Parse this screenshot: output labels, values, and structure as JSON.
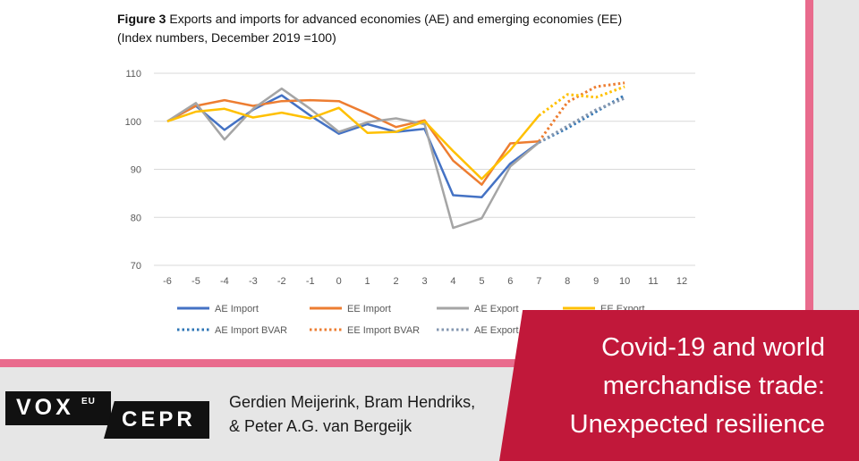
{
  "figure": {
    "label": "Figure 3",
    "title_text": "Exports and imports for advanced economies (AE) and emerging economies (EE)",
    "subtitle": "(Index numbers, December 2019 =100)"
  },
  "chart_data": {
    "type": "line",
    "title": "Exports and imports for advanced economies (AE) and emerging economies (EE)",
    "subtitle": "(Index numbers, December 2019 =100)",
    "xlabel": "",
    "ylabel": "",
    "categories": [
      "-6",
      "-5",
      "-4",
      "-3",
      "-2",
      "-1",
      "0",
      "1",
      "2",
      "3",
      "4",
      "5",
      "6",
      "7",
      "8",
      "9",
      "10",
      "11",
      "12"
    ],
    "xlim": [
      -6,
      12
    ],
    "ylim": [
      70,
      110
    ],
    "yticks": [
      70,
      80,
      90,
      100,
      110
    ],
    "grid": "horizontal",
    "legend_position": "bottom",
    "series": [
      {
        "name": "AE Import",
        "color": "#4472c4",
        "style": "solid",
        "x": [
          -6,
          -5,
          -4,
          -3,
          -2,
          -1,
          0,
          1,
          2,
          3,
          4,
          5,
          6,
          7
        ],
        "values": [
          100,
          103.2,
          98.2,
          102.4,
          105.4,
          101.2,
          97.4,
          99.4,
          97.8,
          98.4,
          84.6,
          84.2,
          91.2,
          95.6
        ]
      },
      {
        "name": "EE Import",
        "color": "#ed7d31",
        "style": "solid",
        "x": [
          -6,
          -5,
          -4,
          -3,
          -2,
          -1,
          0,
          1,
          2,
          3,
          4,
          5,
          6,
          7
        ],
        "values": [
          100,
          103.2,
          104.4,
          103.2,
          104.2,
          104.4,
          104.2,
          101.6,
          98.8,
          100.2,
          91.8,
          86.8,
          95.4,
          95.8
        ]
      },
      {
        "name": "AE Export",
        "color": "#a5a5a5",
        "style": "solid",
        "x": [
          -6,
          -5,
          -4,
          -3,
          -2,
          -1,
          0,
          1,
          2,
          3,
          4,
          5,
          6,
          7
        ],
        "values": [
          100,
          103.8,
          96.2,
          102.6,
          106.8,
          102.6,
          97.8,
          99.8,
          100.6,
          99.4,
          77.8,
          79.8,
          90.6,
          95.6
        ]
      },
      {
        "name": "EE Export",
        "color": "#ffc000",
        "style": "solid",
        "x": [
          -6,
          -5,
          -4,
          -3,
          -2,
          -1,
          0,
          1,
          2,
          3,
          4,
          5,
          6,
          7
        ],
        "values": [
          100,
          102.0,
          102.6,
          100.8,
          101.8,
          100.6,
          102.8,
          97.6,
          97.8,
          100.0,
          93.8,
          88.0,
          94.0,
          101.2
        ]
      },
      {
        "name": "AE Import BVAR",
        "color": "#2e75b6",
        "style": "dotted",
        "x": [
          7,
          8,
          9,
          10
        ],
        "values": [
          95.6,
          98.6,
          102.0,
          105.4
        ]
      },
      {
        "name": "EE Import BVAR",
        "color": "#ed7d31",
        "style": "dotted",
        "x": [
          7,
          8,
          9,
          10
        ],
        "values": [
          95.8,
          104.0,
          107.2,
          108.0
        ]
      },
      {
        "name": "AE Export BVAR",
        "color": "#8497b0",
        "style": "dotted",
        "x": [
          7,
          8,
          9,
          10
        ],
        "values": [
          95.6,
          99.0,
          102.4,
          104.8
        ]
      },
      {
        "name": "EE Export BVAR",
        "color": "#ffc000",
        "style": "dotted",
        "x": [
          7,
          8,
          9,
          10
        ],
        "values": [
          101.2,
          105.6,
          105.0,
          107.2
        ]
      }
    ],
    "legend": [
      {
        "label": "AE Import",
        "series": 0
      },
      {
        "label": "EE Import",
        "series": 1
      },
      {
        "label": "AE Export",
        "series": 2
      },
      {
        "label": "EE Export",
        "series": 3
      },
      {
        "label": "AE Import BVAR",
        "series": 4
      },
      {
        "label": "EE Import BVAR",
        "series": 5
      },
      {
        "label": "AE Export BVAR",
        "series": 6
      }
    ]
  },
  "banner": {
    "logo_vox": "VOX",
    "logo_eu": "EU",
    "logo_cepr": "CEPR",
    "authors_line1": "Gerdien Meijerink, Bram Hendriks,",
    "authors_line2": "& Peter A.G. van Bergeijk",
    "headline_line1": "Covid-19 and world",
    "headline_line2": "merchandise trade:",
    "headline_line3": "Unexpected resilience"
  },
  "colors": {
    "pink_band": "#e96b8d",
    "headline_red": "#c1183a",
    "logo_black": "#111111",
    "banner_gray": "#e6e6e6"
  }
}
